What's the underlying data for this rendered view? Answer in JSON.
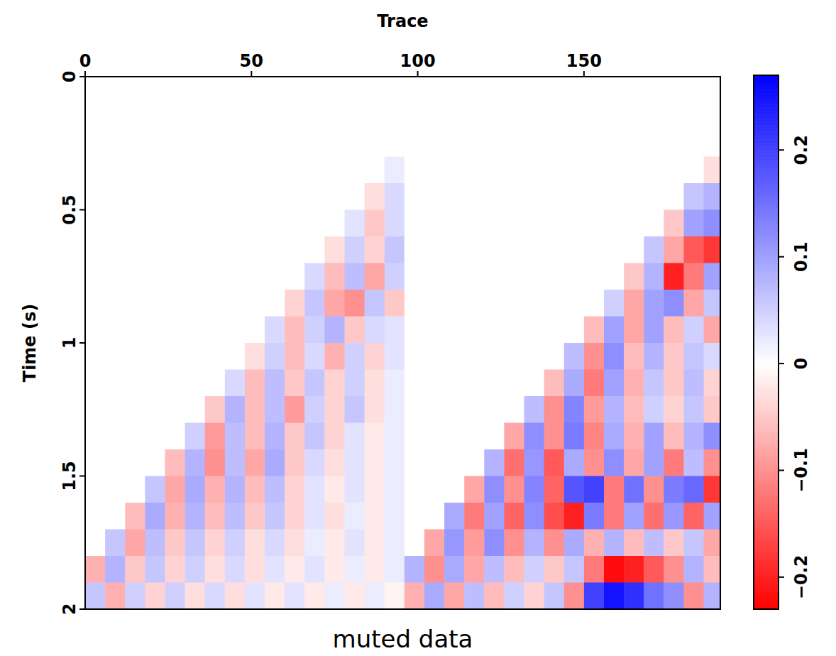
{
  "chart_data": {
    "type": "heatmap",
    "title": "muted data",
    "x_label": "Trace",
    "y_label": "Time (s)",
    "xlim": [
      0,
      191
    ],
    "ylim": [
      0,
      2
    ],
    "xticks": [
      0,
      50,
      100,
      150
    ],
    "yticks": [
      0,
      0.5,
      1,
      1.5,
      2
    ],
    "colors": [
      "#ff0000",
      "#ffffff",
      "#0000ff"
    ],
    "colorbar": {
      "range": [
        -0.23,
        0.27
      ],
      "ticks": [
        {
          "value": -0.2,
          "label": "−0.2"
        },
        {
          "value": -0.1,
          "label": "−0.1"
        },
        0,
        0.1,
        0.2
      ]
    },
    "x": [
      3,
      9,
      15,
      21,
      27,
      33,
      39,
      45,
      51,
      57,
      63,
      69,
      75,
      81,
      87,
      93,
      99,
      105,
      111,
      117,
      123,
      129,
      135,
      141,
      147,
      153,
      159,
      165,
      171,
      177,
      183,
      189
    ],
    "y": [
      0.05,
      0.15,
      0.25,
      0.35,
      0.45,
      0.55,
      0.65,
      0.75,
      0.85,
      0.95,
      1.05,
      1.15,
      1.25,
      1.35,
      1.45,
      1.55,
      1.65,
      1.75,
      1.85,
      1.95
    ],
    "values": [
      [
        0,
        0,
        0,
        0,
        0,
        0,
        0,
        0,
        0,
        0,
        0,
        0,
        0,
        0,
        0,
        0,
        0,
        0,
        0,
        0,
        0,
        0,
        0,
        0,
        0,
        0,
        0,
        0,
        0,
        0,
        0,
        0
      ],
      [
        0,
        0,
        0,
        0,
        0,
        0,
        0,
        0,
        0,
        0,
        0,
        0,
        0,
        0,
        0,
        0,
        0,
        0,
        0,
        0,
        0,
        0,
        0,
        0,
        0,
        0,
        0,
        0,
        0,
        0,
        0,
        0
      ],
      [
        0,
        0,
        0,
        0,
        0,
        0,
        0,
        0,
        0,
        0,
        0,
        0,
        0,
        0,
        0,
        0,
        0,
        0,
        0,
        0,
        0,
        0,
        0,
        0,
        0,
        0,
        0,
        0,
        0,
        0,
        0,
        0
      ],
      [
        0,
        0,
        0,
        0,
        0,
        0,
        0,
        0,
        0,
        0,
        0,
        0,
        0,
        0,
        0,
        0.02,
        0,
        0,
        0,
        0,
        0,
        0,
        0,
        0,
        0,
        0,
        0,
        0,
        0,
        0,
        0,
        -0.03
      ],
      [
        0,
        0,
        0,
        0,
        0,
        0,
        0,
        0,
        0,
        0,
        0,
        0,
        0,
        0,
        -0.03,
        0.04,
        0,
        0,
        0,
        0,
        0,
        0,
        0,
        0,
        0,
        0,
        0,
        0,
        0,
        0,
        0.06,
        0.08
      ],
      [
        0,
        0,
        0,
        0,
        0,
        0,
        0,
        0,
        0,
        0,
        0,
        0,
        0,
        0.03,
        -0.05,
        0.04,
        0,
        0,
        0,
        0,
        0,
        0,
        0,
        0,
        0,
        0,
        0,
        0,
        0,
        -0.05,
        0.1,
        0.12
      ],
      [
        0,
        0,
        0,
        0,
        0,
        0,
        0,
        0,
        0,
        0,
        0,
        0,
        -0.03,
        0.05,
        -0.04,
        0.06,
        0,
        0,
        0,
        0,
        0,
        0,
        0,
        0,
        0,
        0,
        0,
        0,
        0.06,
        -0.08,
        -0.15,
        -0.18
      ],
      [
        0,
        0,
        0,
        0,
        0,
        0,
        0,
        0,
        0,
        0,
        0,
        0.04,
        -0.06,
        0.07,
        -0.08,
        0.05,
        0,
        0,
        0,
        0,
        0,
        0,
        0,
        0,
        0,
        0,
        0,
        -0.05,
        0.08,
        -0.2,
        -0.12,
        0.1
      ],
      [
        0,
        0,
        0,
        0,
        0,
        0,
        0,
        0,
        0,
        0,
        -0.04,
        0.06,
        -0.08,
        -0.1,
        0.06,
        -0.05,
        0,
        0,
        0,
        0,
        0,
        0,
        0,
        0,
        0,
        0,
        0.05,
        -0.08,
        0.1,
        0.12,
        -0.08,
        0.06
      ],
      [
        0,
        0,
        0,
        0,
        0,
        0,
        0,
        0,
        0,
        0.04,
        -0.06,
        0.05,
        0.08,
        -0.05,
        0.04,
        0.03,
        0,
        0,
        0,
        0,
        0,
        0,
        0,
        0,
        0,
        -0.06,
        0.1,
        -0.08,
        0.1,
        -0.06,
        0.05,
        -0.08
      ],
      [
        0,
        0,
        0,
        0,
        0,
        0,
        0,
        0,
        -0.03,
        0.05,
        -0.06,
        0.04,
        -0.07,
        0.05,
        -0.04,
        0.03,
        0,
        0,
        0,
        0,
        0,
        0,
        0,
        0,
        0.07,
        -0.1,
        0.12,
        -0.06,
        0.08,
        -0.05,
        0.06,
        0.04
      ],
      [
        0,
        0,
        0,
        0,
        0,
        0,
        0,
        0.04,
        -0.06,
        0.07,
        -0.05,
        0.06,
        -0.04,
        0.05,
        -0.03,
        0.02,
        0,
        0,
        0,
        0,
        0,
        0,
        0,
        -0.06,
        0.09,
        -0.12,
        0.1,
        -0.07,
        0.06,
        -0.05,
        0.07,
        -0.04
      ],
      [
        0,
        0,
        0,
        0,
        0,
        0,
        -0.05,
        0.08,
        -0.06,
        0.07,
        -0.09,
        0.05,
        -0.04,
        0.06,
        -0.03,
        0.02,
        0,
        0,
        0,
        0,
        0,
        0,
        0.07,
        -0.1,
        0.13,
        -0.09,
        0.08,
        -0.06,
        0.05,
        -0.04,
        0.06,
        -0.05
      ],
      [
        0,
        0,
        0,
        0,
        0,
        0.05,
        -0.09,
        0.07,
        -0.06,
        0.08,
        -0.05,
        0.06,
        -0.04,
        0.03,
        -0.02,
        0.02,
        0,
        0,
        0,
        0,
        0,
        -0.08,
        0.12,
        -0.1,
        0.14,
        -0.11,
        0.09,
        -0.07,
        0.1,
        -0.06,
        0.08,
        0.12
      ],
      [
        0,
        0,
        0,
        0,
        -0.06,
        0.08,
        -0.1,
        0.07,
        -0.08,
        0.09,
        -0.05,
        0.04,
        -0.03,
        0.03,
        -0.02,
        0.02,
        0,
        0,
        0,
        0,
        0.08,
        -0.13,
        0.11,
        -0.15,
        0.09,
        -0.1,
        0.12,
        -0.08,
        0.1,
        -0.12,
        0.07,
        -0.1
      ],
      [
        0,
        0,
        0,
        0.06,
        -0.08,
        0.09,
        -0.07,
        0.08,
        -0.06,
        0.07,
        -0.04,
        0.03,
        -0.02,
        0.03,
        -0.02,
        0.02,
        0,
        0,
        0,
        -0.08,
        0.12,
        -0.1,
        0.13,
        -0.14,
        0.18,
        0.2,
        -0.12,
        0.15,
        -0.1,
        0.14,
        0.16,
        -0.18
      ],
      [
        0,
        0,
        -0.06,
        0.09,
        -0.07,
        0.08,
        -0.06,
        0.07,
        -0.05,
        0.06,
        -0.04,
        0.03,
        -0.03,
        0.02,
        -0.02,
        0.02,
        0,
        0,
        0.09,
        -0.12,
        0.1,
        -0.14,
        0.12,
        -0.16,
        -0.2,
        0.14,
        -0.12,
        0.1,
        -0.13,
        0.11,
        -0.14,
        0.1
      ],
      [
        0,
        0.06,
        -0.08,
        0.07,
        -0.05,
        0.06,
        -0.04,
        0.05,
        -0.03,
        0.04,
        -0.03,
        0.02,
        -0.02,
        0.03,
        -0.02,
        0.02,
        0,
        -0.08,
        0.11,
        -0.09,
        0.12,
        -0.1,
        0.08,
        -0.1,
        0.09,
        -0.07,
        0.08,
        -0.06,
        0.07,
        -0.05,
        0.06,
        -0.08
      ],
      [
        -0.07,
        0.08,
        -0.05,
        0.06,
        -0.04,
        0.05,
        -0.03,
        0.04,
        -0.03,
        0.03,
        -0.02,
        0.03,
        -0.02,
        0.02,
        -0.02,
        0.02,
        0.08,
        -0.1,
        0.09,
        -0.08,
        0.07,
        -0.06,
        0.05,
        -0.05,
        0.06,
        -0.12,
        -0.22,
        -0.2,
        -0.15,
        -0.1,
        0.08,
        -0.06
      ],
      [
        0.06,
        -0.07,
        0.05,
        -0.04,
        0.05,
        -0.03,
        0.04,
        -0.03,
        0.03,
        -0.02,
        0.03,
        -0.02,
        0.02,
        -0.02,
        0.02,
        -0.01,
        -0.07,
        0.09,
        -0.08,
        0.07,
        -0.06,
        0.05,
        -0.04,
        0.06,
        -0.1,
        0.2,
        0.25,
        0.22,
        0.15,
        0.12,
        -0.1,
        0.08
      ]
    ]
  }
}
